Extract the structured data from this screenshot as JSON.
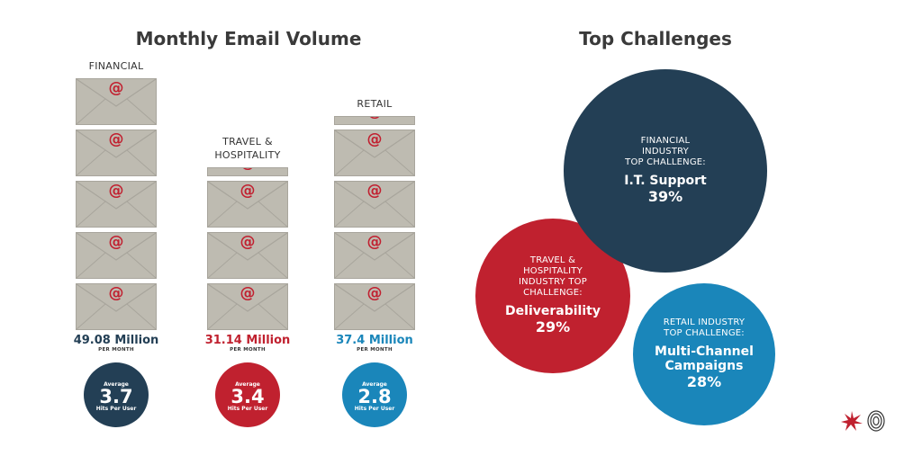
{
  "colors": {
    "navy": "#233f55",
    "red": "#c0212f",
    "teal": "#1a86ba",
    "envelope": "#bebbb1",
    "at": "#c12030"
  },
  "icons": {
    "envelope": "envelope-icon",
    "logo_left": "star-burst-logo-icon",
    "logo_right": "fingerprint-logo-icon"
  },
  "chart_data": [
    {
      "type": "bar",
      "title": "Monthly Email Volume",
      "categories": [
        "FINANCIAL",
        "TRAVEL & HOSPITALITY",
        "RETAIL"
      ],
      "values": [
        49.08,
        31.14,
        37.4
      ],
      "envelope_counts": [
        5,
        3.2,
        4.2
      ],
      "value_labels": [
        "49.08 Million",
        "31.14 Million",
        "37.4 Million"
      ],
      "unit_label": "PER MONTH",
      "averages": [
        {
          "top": "Average",
          "value": "3.7",
          "bottom": "Hits Per User"
        },
        {
          "top": "Average",
          "value": "3.4",
          "bottom": "Hits Per User"
        },
        {
          "top": "Average",
          "value": "2.8",
          "bottom": "Hits Per User"
        }
      ]
    },
    {
      "type": "bubble",
      "title": "Top Challenges",
      "bubbles": [
        {
          "label": "FINANCIAL\nINDUSTRY\nTOP CHALLENGE:",
          "name": "I.T. Support",
          "value": 39,
          "value_label": "39%"
        },
        {
          "label": "TRAVEL &\nHOSPITALITY\nINDUSTRY TOP\nCHALLENGE:",
          "name": "Deliverability",
          "value": 29,
          "value_label": "29%"
        },
        {
          "label": "RETAIL INDUSTRY\nTOP CHALLENGE:",
          "name": "Multi-Channel\nCampaigns",
          "value": 28,
          "value_label": "28%"
        }
      ]
    }
  ]
}
